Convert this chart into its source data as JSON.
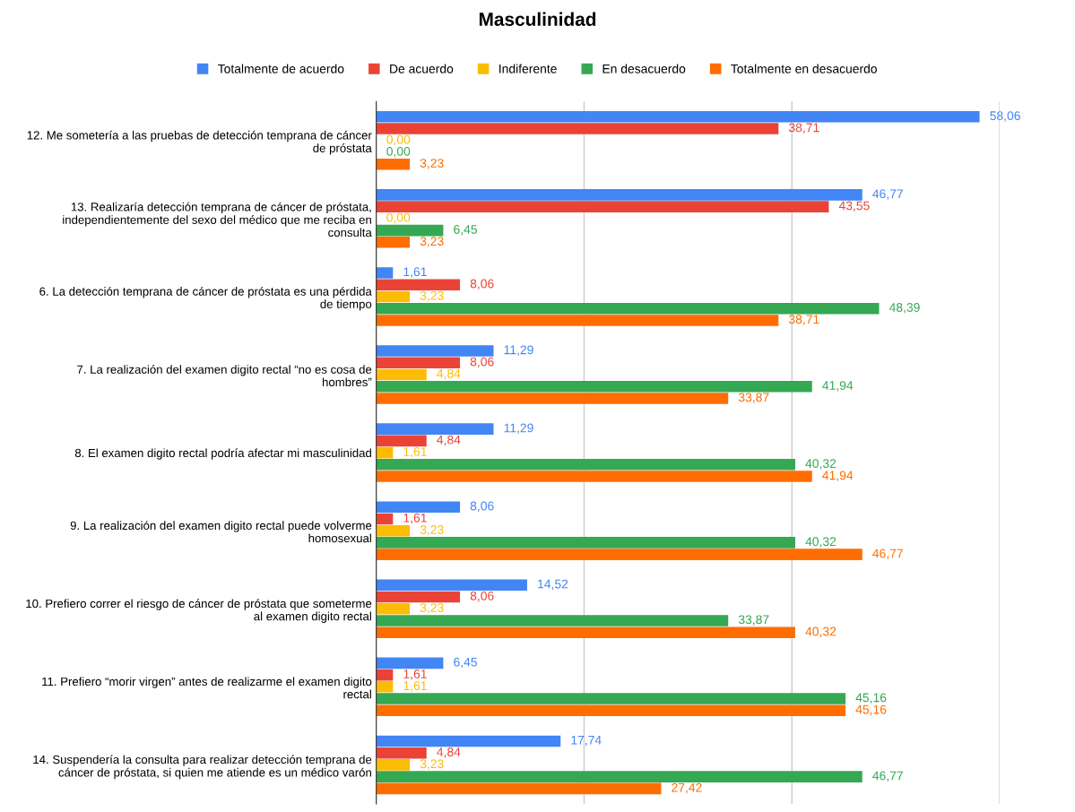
{
  "chart_data": {
    "type": "bar",
    "orientation": "horizontal",
    "title": "Masculinidad",
    "categories": [
      "12. Me sometería a las pruebas de detección temprana de cáncer\nde próstata",
      "13. Realizaría detección temprana de cáncer de próstata,\nindependientemente del sexo del médico que me reciba en\nconsulta",
      "6. La detección temprana de cáncer de próstata es una pérdida\nde tiempo",
      "7. La realización del examen digito rectal “no es cosa de\nhombres”",
      "8. El examen digito rectal podría afectar mi masculinidad",
      "9. La realización del examen digito rectal puede volverme\nhomosexual",
      "10. Prefiero correr el riesgo de cáncer de próstata que someterme\nal examen digito rectal",
      "11. Prefiero “morir virgen” antes de realizarme el examen digito\nrectal",
      "14. Suspendería la consulta para realizar detección temprana de\ncáncer de próstata, si quien me atiende es un médico varón"
    ],
    "series": [
      {
        "name": "Totalmente de acuerdo",
        "color": "#4285f4",
        "values": [
          58.06,
          46.77,
          1.61,
          11.29,
          11.29,
          8.06,
          14.52,
          6.45,
          17.74
        ],
        "value_labels": [
          "58,06",
          "46,77",
          "1,61",
          "11,29",
          "11,29",
          "8,06",
          "14,52",
          "6,45",
          "17,74"
        ]
      },
      {
        "name": "De acuerdo",
        "color": "#ea4335",
        "values": [
          38.71,
          43.55,
          8.06,
          8.06,
          4.84,
          1.61,
          8.06,
          1.61,
          4.84
        ],
        "value_labels": [
          "38,71",
          "43,55",
          "8,06",
          "8,06",
          "4,84",
          "1,61",
          "8,06",
          "1,61",
          "4,84"
        ]
      },
      {
        "name": "Indiferente",
        "color": "#fbbc04",
        "values": [
          0,
          0,
          3.23,
          4.84,
          1.61,
          3.23,
          3.23,
          1.61,
          3.23
        ],
        "value_labels": [
          "0,00",
          "0,00",
          "3,23",
          "4,84",
          "1,61",
          "3,23",
          "3,23",
          "1,61",
          "3,23"
        ]
      },
      {
        "name": "En desacuerdo",
        "color": "#34a853",
        "values": [
          0,
          6.45,
          48.39,
          41.94,
          40.32,
          40.32,
          33.87,
          45.16,
          46.77
        ],
        "value_labels": [
          "0,00",
          "6,45",
          "48,39",
          "41,94",
          "40,32",
          "40,32",
          "33,87",
          "45,16",
          "46,77"
        ]
      },
      {
        "name": "Totalmente en desacuerdo",
        "color": "#ff6d01",
        "values": [
          3.23,
          3.23,
          38.71,
          33.87,
          41.94,
          46.77,
          40.32,
          45.16,
          27.42
        ],
        "value_labels": [
          "3,23",
          "3,23",
          "38,71",
          "33,87",
          "41,94",
          "46,77",
          "40,32",
          "45,16",
          "27,42"
        ]
      }
    ],
    "xlim": [
      0,
      60
    ],
    "xticks": [
      {
        "value": 0,
        "label": null
      },
      {
        "value": 20,
        "label": null
      },
      {
        "value": 40,
        "label": null
      },
      {
        "value": 60,
        "label": null
      }
    ],
    "tick_labels": "y",
    "grid": "x",
    "legend": "top"
  }
}
